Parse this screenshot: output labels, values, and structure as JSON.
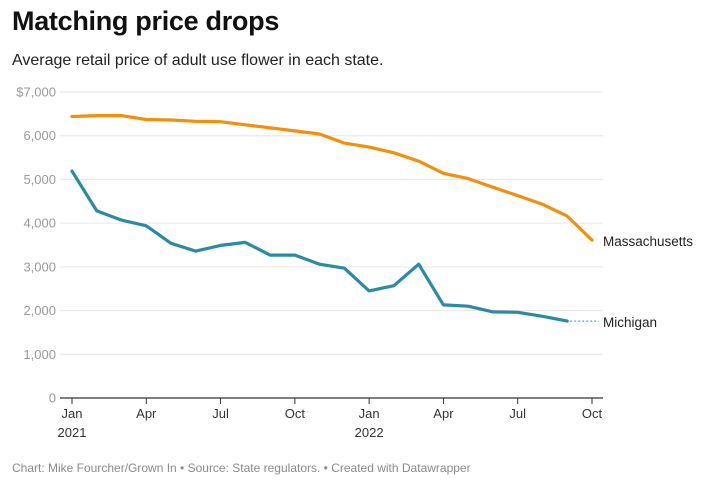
{
  "title": "Matching price drops",
  "subtitle": "Average retail price of adult use flower in each state.",
  "footer": "Chart: Mike Fourcher/Grown In • Source: State regulators. • Created with Datawrapper",
  "chart_data": {
    "type": "line",
    "title": "Matching price drops",
    "subtitle": "Average retail price of adult use flower in each state.",
    "xlabel": "",
    "ylabel": "",
    "ylim": [
      0,
      7000
    ],
    "y_ticks": [
      {
        "value": 0,
        "label": "0"
      },
      {
        "value": 1000,
        "label": "1,000"
      },
      {
        "value": 2000,
        "label": "2,000"
      },
      {
        "value": 3000,
        "label": "3,000"
      },
      {
        "value": 4000,
        "label": "4,000"
      },
      {
        "value": 5000,
        "label": "5,000"
      },
      {
        "value": 6000,
        "label": "6,000"
      },
      {
        "value": 7000,
        "label": "$7,000"
      }
    ],
    "x_range": [
      "2021-01",
      "2022-10"
    ],
    "x_ticks": [
      {
        "x": "2021-01",
        "label": "Jan",
        "sublabel": "2021"
      },
      {
        "x": "2021-04",
        "label": "Apr",
        "sublabel": ""
      },
      {
        "x": "2021-07",
        "label": "Jul",
        "sublabel": ""
      },
      {
        "x": "2021-10",
        "label": "Oct",
        "sublabel": ""
      },
      {
        "x": "2022-01",
        "label": "Jan",
        "sublabel": "2022"
      },
      {
        "x": "2022-04",
        "label": "Apr",
        "sublabel": ""
      },
      {
        "x": "2022-07",
        "label": "Jul",
        "sublabel": ""
      },
      {
        "x": "2022-10",
        "label": "Oct",
        "sublabel": ""
      }
    ],
    "grid": true,
    "series": [
      {
        "name": "Massachusetts",
        "color": "#f0900c",
        "x": [
          "2021-01",
          "2021-02",
          "2021-03",
          "2021-04",
          "2021-05",
          "2021-06",
          "2021-07",
          "2021-08",
          "2021-09",
          "2021-10",
          "2021-11",
          "2021-12",
          "2022-01",
          "2022-02",
          "2022-03",
          "2022-04",
          "2022-05",
          "2022-06",
          "2022-07",
          "2022-08",
          "2022-09",
          "2022-10"
        ],
        "values": [
          6440,
          6460,
          6460,
          6370,
          6360,
          6330,
          6320,
          6250,
          6180,
          6110,
          6040,
          5830,
          5740,
          5610,
          5420,
          5140,
          5020,
          4820,
          4630,
          4430,
          4160,
          3610
        ]
      },
      {
        "name": "Michigan",
        "color": "#2c8aa2",
        "x": [
          "2021-01",
          "2021-02",
          "2021-03",
          "2021-04",
          "2021-05",
          "2021-06",
          "2021-07",
          "2021-08",
          "2021-09",
          "2021-10",
          "2021-11",
          "2021-12",
          "2022-01",
          "2022-02",
          "2022-03",
          "2022-04",
          "2022-05",
          "2022-06",
          "2022-07",
          "2022-08",
          "2022-09"
        ],
        "values": [
          5190,
          4280,
          4070,
          3940,
          3540,
          3360,
          3490,
          3560,
          3270,
          3270,
          3060,
          2970,
          2450,
          2570,
          3060,
          2130,
          2100,
          1970,
          1960,
          1870,
          1760
        ],
        "label_connector": "dashed"
      }
    ]
  }
}
